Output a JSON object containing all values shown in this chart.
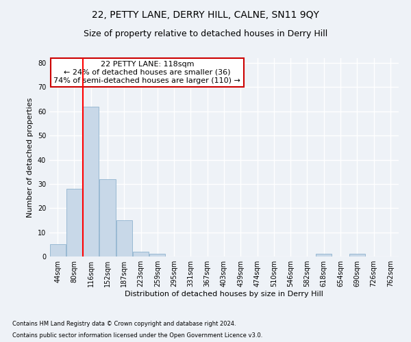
{
  "title": "22, PETTY LANE, DERRY HILL, CALNE, SN11 9QY",
  "subtitle": "Size of property relative to detached houses in Derry Hill",
  "xlabel": "Distribution of detached houses by size in Derry Hill",
  "ylabel": "Number of detached properties",
  "footnote1": "Contains HM Land Registry data © Crown copyright and database right 2024.",
  "footnote2": "Contains public sector information licensed under the Open Government Licence v3.0.",
  "bins": [
    "44sqm",
    "80sqm",
    "116sqm",
    "152sqm",
    "187sqm",
    "223sqm",
    "259sqm",
    "295sqm",
    "331sqm",
    "367sqm",
    "403sqm",
    "439sqm",
    "474sqm",
    "510sqm",
    "546sqm",
    "582sqm",
    "618sqm",
    "654sqm",
    "690sqm",
    "726sqm",
    "762sqm"
  ],
  "values": [
    5,
    28,
    62,
    32,
    15,
    2,
    1,
    0,
    0,
    0,
    0,
    0,
    0,
    0,
    0,
    0,
    1,
    0,
    1,
    0,
    0
  ],
  "bar_color": "#c8d8e8",
  "bar_edge_color": "#7fa8c8",
  "redline_bin_index": 2,
  "annotation_line1": "22 PETTY LANE: 118sqm",
  "annotation_line2": "← 24% of detached houses are smaller (36)",
  "annotation_line3": "74% of semi-detached houses are larger (110) →",
  "ylim": [
    0,
    82
  ],
  "yticks": [
    0,
    10,
    20,
    30,
    40,
    50,
    60,
    70,
    80
  ],
  "background_color": "#eef2f7",
  "grid_color": "#ffffff",
  "title_fontsize": 10,
  "subtitle_fontsize": 9,
  "axis_label_fontsize": 8,
  "tick_fontsize": 7,
  "annotation_fontsize": 8,
  "footnote_fontsize": 6,
  "annotation_box_color": "#ffffff",
  "annotation_box_edge": "#cc0000"
}
